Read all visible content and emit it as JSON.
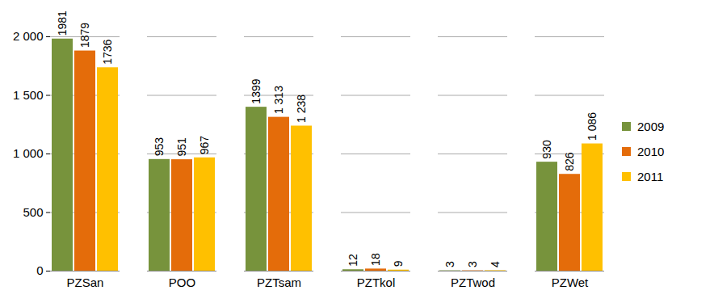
{
  "chart_data": {
    "type": "bar",
    "categories": [
      "PZSan",
      "POO",
      "PZTsam",
      "PZTkol",
      "PZTwod",
      "PZWet"
    ],
    "series": [
      {
        "name": "2009",
        "color": "#77933c",
        "values": [
          1981,
          953,
          1399,
          12,
          3,
          930
        ],
        "value_labels": [
          "1981",
          "953",
          "1399",
          "12",
          "3",
          "930"
        ]
      },
      {
        "name": "2010",
        "color": "#e46c0a",
        "values": [
          1879,
          951,
          1313,
          18,
          3,
          826
        ],
        "value_labels": [
          "1879",
          "951",
          "1 313",
          "18",
          "3",
          "826"
        ]
      },
      {
        "name": "2011",
        "color": "#ffc000",
        "values": [
          1736,
          967,
          1238,
          9,
          4,
          1086
        ],
        "value_labels": [
          "1736",
          "967",
          "1 238",
          "9",
          "4",
          "1 086"
        ]
      }
    ],
    "ylim": [
      0,
      2000
    ],
    "yticks": [
      0,
      500,
      {
        "value": 1000,
        "label": "1 000"
      },
      {
        "value": 1500,
        "label": "1 500"
      },
      {
        "value": 2000,
        "label": "2 000"
      }
    ],
    "grid": true,
    "legend": "right",
    "data_labels": true
  }
}
